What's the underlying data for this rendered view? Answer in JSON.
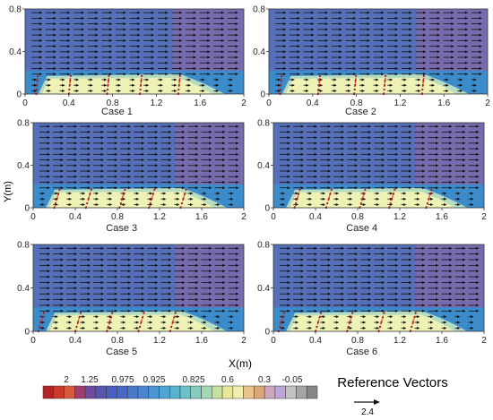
{
  "figure": {
    "y_axis_label": "Y(m)",
    "x_axis_label": "X(m)"
  },
  "chart_data": [
    {
      "type": "heatmap",
      "title": "Case 1",
      "xlim": [
        0,
        2
      ],
      "ylim": [
        0,
        0.8
      ],
      "xticks": [
        "0",
        "0.4",
        "0.8",
        "1.2",
        "1.6",
        "2"
      ],
      "yticks": [
        "0",
        "0.4",
        "0.8"
      ],
      "vegetation_x": [
        0.1,
        0.4,
        0.75,
        1.05,
        1.4
      ]
    },
    {
      "type": "heatmap",
      "title": "Case 2",
      "xlim": [
        0,
        2
      ],
      "ylim": [
        0,
        0.8
      ],
      "xticks": [
        "0",
        "0.4",
        "0.8",
        "1.2",
        "1.6",
        "2"
      ],
      "yticks": [
        "0",
        "0.4",
        "0.8"
      ],
      "vegetation_x": [
        0.1,
        0.45,
        0.78,
        1.05,
        1.4
      ]
    },
    {
      "type": "heatmap",
      "title": "Case 3",
      "xlim": [
        0,
        2
      ],
      "ylim": [
        0,
        0.8
      ],
      "xticks": [
        "0",
        "0.4",
        "0.8",
        "1.2",
        "1.6",
        "2"
      ],
      "yticks": [
        "0",
        "0.4",
        "0.8"
      ],
      "vegetation_x": [
        0.2,
        0.5,
        0.82,
        1.1,
        1.4
      ]
    },
    {
      "type": "heatmap",
      "title": "Case 4",
      "xlim": [
        0,
        2
      ],
      "ylim": [
        0,
        0.8
      ],
      "xticks": [
        "0",
        "0.4",
        "0.8",
        "1.2",
        "1.6",
        "2"
      ],
      "yticks": [
        "0",
        "0.4",
        "0.8"
      ],
      "vegetation_x": [
        0.2,
        0.5,
        0.82,
        1.1,
        1.45
      ]
    },
    {
      "type": "heatmap",
      "title": "Case 5",
      "xlim": [
        0,
        2
      ],
      "ylim": [
        0,
        0.8
      ],
      "xticks": [
        "0",
        "0.4",
        "0.8",
        "1.2",
        "1.6",
        "2"
      ],
      "yticks": [
        "0",
        "0.4",
        "0.8"
      ],
      "vegetation_x": [
        0.05,
        0.4,
        0.7,
        1.0,
        1.3
      ]
    },
    {
      "type": "heatmap",
      "title": "Case 6",
      "xlim": [
        0,
        2
      ],
      "ylim": [
        0,
        0.8
      ],
      "xticks": [
        "0",
        "0.4",
        "0.8",
        "1.2",
        "1.6",
        "2"
      ],
      "yticks": [
        "0",
        "0.4",
        "0.8"
      ],
      "vegetation_x": [
        0.05,
        0.4,
        0.7,
        1.0,
        1.3
      ]
    }
  ],
  "colorbar": {
    "labels": [
      "2",
      "1.25",
      "0.975",
      "0.925",
      "0.825",
      "0.6",
      "0.3",
      "-0.05"
    ],
    "colors": [
      "#b22222",
      "#cc3a2a",
      "#d85a3c",
      "#9f3f6e",
      "#6e4aa0",
      "#5a55b0",
      "#4a5fc0",
      "#4869c8",
      "#4a78cc",
      "#4a86cf",
      "#4b95d2",
      "#4fa5d4",
      "#56b4d0",
      "#68c2c7",
      "#84cdbf",
      "#a4d7b4",
      "#c7e0a3",
      "#e7e996",
      "#f4ecae",
      "#e9c48c",
      "#dda879",
      "#cfa6c0",
      "#bfa6d8",
      "#c2c2c2",
      "#a4a4a4",
      "#868686"
    ]
  },
  "reference_vector": {
    "title": "Reference Vectors",
    "value": "2.4"
  },
  "colors": {
    "upper": "#5570b8",
    "upper_right": "#7f6aaa",
    "lower": "#3c8ccc",
    "layer": "#eef2b4",
    "layer_edge": "#b6dcc2",
    "arrow": "#111111",
    "stem": "#d0342c",
    "stem_dot": "#b5121b"
  }
}
